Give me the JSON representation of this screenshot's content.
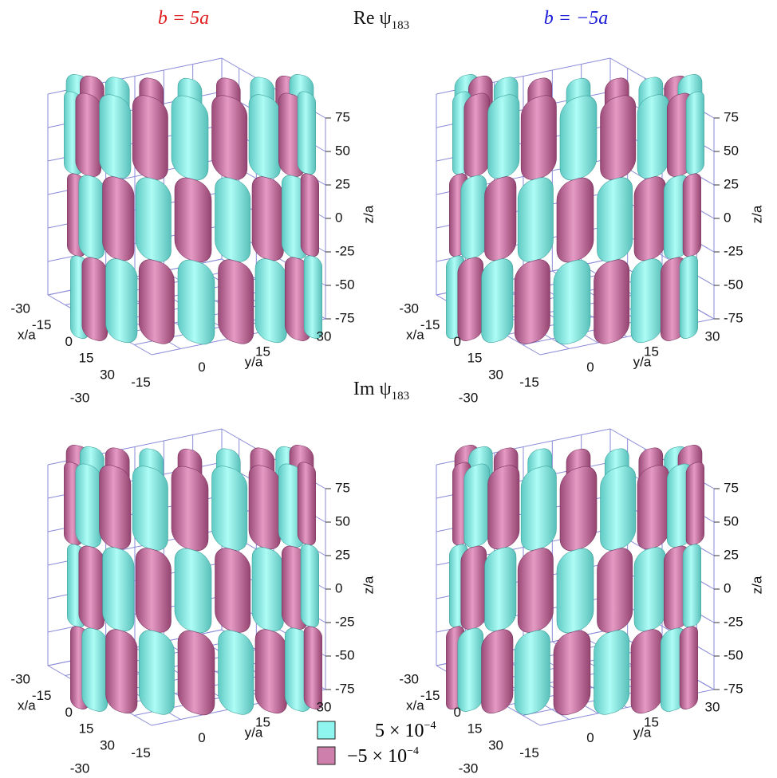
{
  "column_titles": [
    "b = 5a",
    "b = −5a"
  ],
  "row_titles": [
    {
      "prefix": "Re ψ",
      "subscript": "183"
    },
    {
      "prefix": "Im ψ",
      "subscript": "183"
    }
  ],
  "axes": {
    "x_label": "x/a",
    "y_label": "y/a",
    "z_label": "z/a",
    "x_ticks": [
      -30,
      -15,
      0,
      15,
      30
    ],
    "y_ticks": [
      -30,
      -15,
      0,
      15,
      30
    ],
    "z_ticks": [
      75,
      50,
      25,
      0,
      -25,
      -50,
      -75
    ]
  },
  "legend": [
    {
      "mantissa": "5 × 10",
      "exponent": "−4"
    },
    {
      "mantissa": "−5 × 10",
      "exponent": "−4"
    }
  ]
}
